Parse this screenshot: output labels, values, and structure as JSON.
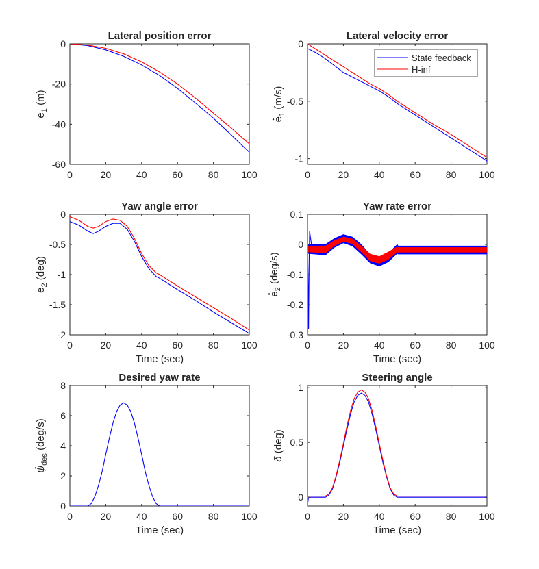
{
  "chart_data": [
    {
      "type": "line",
      "title": "Lateral position error",
      "xlabel": "",
      "ylabel": "e",
      "ylabel_sub": "1",
      "ylabel_unit": "(m)",
      "xlim": [
        0,
        100
      ],
      "ylim": [
        -60,
        0
      ],
      "xticks": [
        0,
        20,
        40,
        60,
        80,
        100
      ],
      "yticks": [
        -60,
        -40,
        -20,
        0
      ],
      "ytick_labels": [
        "-60",
        "-40",
        "-20",
        "0"
      ],
      "legend": null,
      "series": [
        {
          "color": "#0000ff",
          "x": [
            0,
            10,
            20,
            30,
            40,
            50,
            60,
            70,
            80,
            90,
            100
          ],
          "y": [
            0,
            -0.9,
            -3.0,
            -6.2,
            -10.5,
            -15.8,
            -22.2,
            -29.5,
            -37.0,
            -45.4,
            -54.0
          ]
        },
        {
          "color": "#ff0000",
          "x": [
            0,
            10,
            20,
            30,
            40,
            50,
            60,
            70,
            80,
            90,
            100
          ],
          "y": [
            0,
            -0.6,
            -2.2,
            -5.0,
            -9.0,
            -14.0,
            -20.0,
            -27.0,
            -34.5,
            -42.0,
            -49.8
          ]
        }
      ]
    },
    {
      "type": "line",
      "title": "Lateral velocity error",
      "xlabel": "",
      "ylabel": "e",
      "ylabel_sub": "1",
      "ylabel_dot": true,
      "ylabel_unit": "(m/s)",
      "xlim": [
        0,
        100
      ],
      "ylim": [
        -1.05,
        0
      ],
      "xticks": [
        0,
        20,
        40,
        60,
        80,
        100
      ],
      "yticks": [
        -1,
        -0.5,
        0
      ],
      "ytick_labels": [
        "-1",
        "-0.5",
        "0"
      ],
      "legend": {
        "placement": "top-right",
        "entries": [
          "State feedback",
          "H-inf"
        ]
      },
      "series": [
        {
          "name": "State feedback",
          "color": "#0000ff",
          "x": [
            0,
            5,
            10,
            15,
            20,
            25,
            30,
            35,
            40,
            45,
            50,
            60,
            70,
            80,
            90,
            100
          ],
          "y": [
            -0.04,
            -0.08,
            -0.13,
            -0.19,
            -0.25,
            -0.29,
            -0.33,
            -0.37,
            -0.41,
            -0.46,
            -0.52,
            -0.62,
            -0.72,
            -0.82,
            -0.92,
            -1.02
          ]
        },
        {
          "name": "H-inf",
          "color": "#ff0000",
          "x": [
            0,
            5,
            10,
            15,
            20,
            25,
            30,
            35,
            40,
            45,
            50,
            60,
            70,
            80,
            90,
            100
          ],
          "y": [
            0,
            -0.05,
            -0.1,
            -0.15,
            -0.2,
            -0.25,
            -0.3,
            -0.35,
            -0.39,
            -0.44,
            -0.5,
            -0.6,
            -0.7,
            -0.79,
            -0.89,
            -0.99
          ]
        }
      ]
    },
    {
      "type": "line",
      "title": "Yaw angle error",
      "xlabel": "Time (sec)",
      "ylabel": "e",
      "ylabel_sub": "2",
      "ylabel_unit": "(deg)",
      "xlim": [
        0,
        100
      ],
      "ylim": [
        -2,
        0
      ],
      "xticks": [
        0,
        20,
        40,
        60,
        80,
        100
      ],
      "yticks": [
        -2,
        -1.5,
        -1,
        -0.5,
        0
      ],
      "ytick_labels": [
        "-2",
        "-1.5",
        "-1",
        "-0.5",
        "0"
      ],
      "legend": null,
      "series": [
        {
          "color": "#0000ff",
          "x": [
            0,
            5,
            10,
            13,
            16,
            20,
            24,
            28,
            32,
            36,
            40,
            44,
            48,
            50,
            60,
            70,
            80,
            90,
            100
          ],
          "y": [
            -0.12,
            -0.18,
            -0.28,
            -0.32,
            -0.28,
            -0.2,
            -0.15,
            -0.15,
            -0.25,
            -0.45,
            -0.7,
            -0.9,
            -1.03,
            -1.06,
            -1.25,
            -1.43,
            -1.62,
            -1.8,
            -1.98
          ]
        },
        {
          "color": "#ff0000",
          "x": [
            0,
            5,
            10,
            13,
            16,
            20,
            24,
            28,
            32,
            36,
            40,
            44,
            48,
            50,
            60,
            70,
            80,
            90,
            100
          ],
          "y": [
            -0.04,
            -0.1,
            -0.2,
            -0.23,
            -0.2,
            -0.12,
            -0.08,
            -0.1,
            -0.2,
            -0.4,
            -0.65,
            -0.85,
            -0.97,
            -1.0,
            -1.19,
            -1.37,
            -1.55,
            -1.73,
            -1.92
          ]
        }
      ]
    },
    {
      "type": "line",
      "title": "Yaw rate error",
      "xlabel": "Time (sec)",
      "ylabel": "e",
      "ylabel_sub": "2",
      "ylabel_dot": true,
      "ylabel_unit": "(deg/s)",
      "xlim": [
        0,
        100
      ],
      "ylim": [
        -0.3,
        0.1
      ],
      "xticks": [
        0,
        20,
        40,
        60,
        80,
        100
      ],
      "yticks": [
        -0.3,
        -0.2,
        -0.1,
        0,
        0.1
      ],
      "ytick_labels": [
        "-0.3",
        "-0.2",
        "-0.1",
        "0",
        "0.1"
      ],
      "legend": null,
      "series": [
        {
          "color": "#0000ff",
          "band": true,
          "x": [
            0,
            10,
            15,
            20,
            25,
            30,
            35,
            40,
            45,
            50,
            50.5,
            60,
            70,
            80,
            90,
            100
          ],
          "upper": [
            0.0,
            0.0,
            0.02,
            0.033,
            0.025,
            0.0,
            -0.035,
            -0.045,
            -0.03,
            0.0,
            -0.005,
            -0.005,
            -0.005,
            -0.005,
            -0.005,
            -0.005
          ],
          "lower": [
            -0.03,
            -0.035,
            -0.01,
            0.005,
            -0.005,
            -0.032,
            -0.062,
            -0.072,
            -0.058,
            -0.03,
            -0.032,
            -0.032,
            -0.032,
            -0.032,
            -0.032,
            -0.032
          ]
        },
        {
          "color": "#ff0000",
          "band": true,
          "x": [
            0,
            10,
            15,
            20,
            25,
            30,
            35,
            40,
            45,
            50,
            50.5,
            60,
            70,
            80,
            90,
            100
          ],
          "upper": [
            -0.005,
            -0.005,
            0.013,
            0.025,
            0.018,
            -0.005,
            -0.032,
            -0.04,
            -0.025,
            -0.008,
            -0.01,
            -0.01,
            -0.01,
            -0.01,
            -0.01,
            -0.01
          ],
          "lower": [
            -0.025,
            -0.028,
            -0.004,
            0.01,
            0.002,
            -0.025,
            -0.055,
            -0.063,
            -0.05,
            -0.025,
            -0.026,
            -0.026,
            -0.026,
            -0.026,
            -0.026,
            -0.026
          ]
        },
        {
          "color": "#0000ff",
          "x": [
            0,
            0.3,
            0.6,
            0.9,
            1.2,
            1.5,
            2,
            2.5
          ],
          "y": [
            0,
            -0.1,
            -0.28,
            -0.05,
            0.045,
            0.03,
            0.01,
            -0.01
          ]
        }
      ]
    },
    {
      "type": "line",
      "title": "Desired yaw rate",
      "xlabel": "Time (sec)",
      "ylabel": "ψ",
      "ylabel_sub": "des",
      "ylabel_dot": true,
      "ylabel_unit": "(deg/s)",
      "xlim": [
        0,
        100
      ],
      "ylim": [
        0,
        8
      ],
      "xticks": [
        0,
        20,
        40,
        60,
        80,
        100
      ],
      "yticks": [
        0,
        2,
        4,
        6,
        8
      ],
      "ytick_labels": [
        "0",
        "2",
        "4",
        "6",
        "8"
      ],
      "legend": null,
      "series": [
        {
          "color": "#0000ff",
          "x": [
            0,
            10,
            12,
            14,
            16,
            18,
            20,
            22,
            24,
            26,
            28,
            30,
            32,
            34,
            36,
            38,
            40,
            42,
            44,
            46,
            48,
            50,
            60,
            70,
            80,
            90,
            100
          ],
          "y": [
            0,
            0,
            0.17,
            0.65,
            1.38,
            2.3,
            3.43,
            4.5,
            5.5,
            6.25,
            6.7,
            6.85,
            6.7,
            6.25,
            5.5,
            4.5,
            3.43,
            2.3,
            1.38,
            0.65,
            0.17,
            0,
            0,
            0,
            0,
            0,
            0
          ]
        }
      ]
    },
    {
      "type": "line",
      "title": "Steering angle",
      "xlabel": "Time (sec)",
      "ylabel": "δ",
      "ylabel_unit": "(deg)",
      "xlim": [
        0,
        100
      ],
      "ylim": [
        -0.08,
        1.02
      ],
      "xticks": [
        0,
        20,
        40,
        60,
        80,
        100
      ],
      "yticks": [
        0,
        0.5,
        1
      ],
      "ytick_labels": [
        "0",
        "0.5",
        "1"
      ],
      "legend": null,
      "series": [
        {
          "color": "#0000ff",
          "x": [
            0,
            0.5,
            1.5,
            10,
            12,
            14,
            16,
            18,
            20,
            22,
            24,
            26,
            28,
            30,
            32,
            34,
            36,
            38,
            40,
            42,
            44,
            46,
            48,
            50,
            60,
            70,
            80,
            90,
            100
          ],
          "y": [
            -0.07,
            -0.01,
            0,
            0,
            0.02,
            0.08,
            0.19,
            0.32,
            0.47,
            0.62,
            0.76,
            0.87,
            0.93,
            0.95,
            0.93,
            0.87,
            0.76,
            0.62,
            0.47,
            0.32,
            0.19,
            0.08,
            0.02,
            0,
            0,
            0,
            0,
            0,
            0
          ]
        },
        {
          "color": "#ff0000",
          "x": [
            0,
            0.5,
            1.5,
            10,
            12,
            14,
            16,
            18,
            20,
            22,
            24,
            26,
            28,
            30,
            32,
            34,
            36,
            38,
            40,
            42,
            44,
            46,
            48,
            50,
            60,
            70,
            80,
            90,
            100
          ],
          "y": [
            0,
            0.01,
            0.01,
            0.01,
            0.03,
            0.09,
            0.2,
            0.34,
            0.49,
            0.65,
            0.79,
            0.9,
            0.96,
            0.98,
            0.96,
            0.9,
            0.79,
            0.65,
            0.49,
            0.34,
            0.2,
            0.09,
            0.03,
            0.01,
            0.01,
            0.01,
            0.01,
            0.01,
            0.01
          ]
        }
      ]
    }
  ]
}
